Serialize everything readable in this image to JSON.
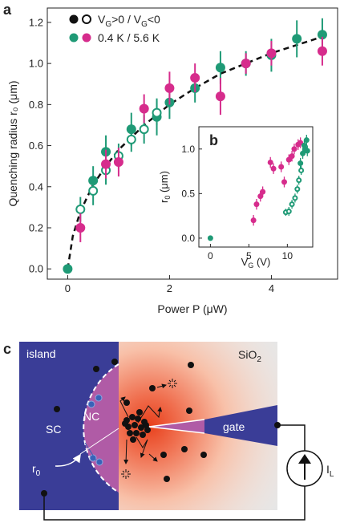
{
  "panel_labels": {
    "a": "a",
    "b": "b",
    "c": "c"
  },
  "colors": {
    "green": "#1f9a76",
    "magenta": "#d62c8c",
    "black": "#111111",
    "blue": "#3a3d97",
    "grey": "#e6e6e6",
    "nc": "#b05ba6"
  },
  "chart_data": [
    {
      "id": "a",
      "type": "scatter",
      "xlabel": "Power P (μW)",
      "ylabel": "Quenching radius r₀ (μm)",
      "xlim": [
        -0.4,
        5.3
      ],
      "ylim": [
        -0.05,
        1.27
      ],
      "xticks": [
        0,
        2,
        4
      ],
      "yticks": [
        0.0,
        0.2,
        0.4,
        0.6,
        0.8,
        1.0,
        1.2
      ],
      "xtick_labels": [
        "0",
        "2",
        "4"
      ],
      "ytick_labels": [
        "0.0",
        "0.2",
        "0.4",
        "0.6",
        "0.8",
        "1.0",
        "1.2"
      ],
      "legend": [
        {
          "markers": "filled-black / open-black",
          "label_main": "V",
          "sub1": "G",
          "mid": ">0 / V",
          "sub2": "G",
          "tail": "<0"
        },
        {
          "markers": "green / magenta",
          "label_main": "0.4 K / 5.6 K"
        }
      ],
      "fit_curve": {
        "style": "dashed",
        "x": [
          0,
          0.1,
          0.25,
          0.5,
          0.75,
          1.0,
          1.5,
          2.0,
          2.5,
          3.0,
          3.5,
          4.0,
          4.5,
          5.0
        ],
        "y": [
          0.0,
          0.16,
          0.28,
          0.41,
          0.5,
          0.58,
          0.7,
          0.8,
          0.88,
          0.95,
          1.0,
          1.05,
          1.09,
          1.13
        ]
      },
      "series": [
        {
          "name": "0.4 K",
          "color": "green",
          "fill": "filled",
          "x": [
            0.0,
            0.5,
            0.75,
            1.25,
            1.75,
            2.0,
            2.5,
            3.0,
            3.5,
            4.0,
            4.5,
            5.0
          ],
          "y": [
            0.0,
            0.43,
            0.57,
            0.68,
            0.74,
            0.81,
            0.88,
            0.98,
            1.0,
            1.04,
            1.12,
            1.14
          ],
          "err": [
            0.02,
            0.07,
            0.08,
            0.08,
            0.09,
            0.08,
            0.07,
            0.08,
            0.06,
            0.08,
            0.09,
            0.08
          ]
        },
        {
          "name": "0.4 K open",
          "color": "green",
          "fill": "open",
          "x": [
            0.25,
            0.5,
            0.75,
            1.0,
            1.25,
            1.5,
            1.75
          ],
          "y": [
            0.29,
            0.38,
            0.48,
            0.55,
            0.63,
            0.68,
            0.76
          ],
          "err": [
            0.06,
            0.07,
            0.07,
            0.06,
            0.06,
            0.07,
            0.06
          ]
        },
        {
          "name": "5.6 K",
          "color": "magenta",
          "fill": "filled",
          "x": [
            0.25,
            0.75,
            1.0,
            1.5,
            2.0,
            2.5,
            3.0,
            3.5,
            4.0,
            5.0
          ],
          "y": [
            0.2,
            0.51,
            0.52,
            0.78,
            0.88,
            0.93,
            0.84,
            1.0,
            1.05,
            1.06
          ],
          "err": [
            0.07,
            0.07,
            0.07,
            0.07,
            0.08,
            0.07,
            0.09,
            0.05,
            0.06,
            0.07
          ]
        }
      ]
    },
    {
      "id": "b",
      "type": "scatter",
      "xlabel_main": "V",
      "xlabel_sub": "G",
      "xlabel_tail": " (V)",
      "ylabel_main": "r",
      "ylabel_sub": "0",
      "ylabel_tail": " (μm)",
      "xlim": [
        -1.5,
        13.3
      ],
      "ylim": [
        -0.1,
        1.25
      ],
      "xticks": [
        0,
        5,
        10
      ],
      "yticks": [
        0.0,
        0.5,
        1.0
      ],
      "xtick_labels": [
        "0",
        "5",
        "10"
      ],
      "ytick_labels": [
        "0.0",
        "0.5",
        "1.0"
      ],
      "series": [
        {
          "name": "5.6 K",
          "color": "magenta",
          "fill": "filled",
          "x": [
            5.6,
            6.0,
            6.5,
            6.8,
            7.8,
            8.2,
            9.2,
            9.6,
            10.2,
            10.6,
            10.9,
            11.4,
            11.7
          ],
          "y": [
            0.2,
            0.38,
            0.47,
            0.52,
            0.85,
            0.78,
            0.8,
            0.63,
            0.88,
            0.92,
            1.0,
            1.05,
            1.07
          ],
          "err": [
            0.06,
            0.06,
            0.06,
            0.06,
            0.06,
            0.06,
            0.06,
            0.06,
            0.06,
            0.06,
            0.06,
            0.06,
            0.06
          ]
        },
        {
          "name": "0.4 K",
          "color": "green",
          "fill": "filled",
          "x": [
            0.0,
            11.7,
            12.0,
            12.2,
            12.3,
            12.5,
            12.6
          ],
          "y": [
            0.0,
            0.84,
            0.95,
            1.04,
            1.0,
            1.1,
            0.98
          ],
          "err": [
            0.02,
            0.06,
            0.06,
            0.06,
            0.06,
            0.06,
            0.06
          ]
        },
        {
          "name": "0.4 K open",
          "color": "green",
          "fill": "open",
          "x": [
            9.8,
            10.2,
            10.6,
            11.0,
            11.3,
            11.5,
            11.8
          ],
          "y": [
            0.29,
            0.3,
            0.38,
            0.45,
            0.55,
            0.65,
            0.76
          ],
          "err": [
            0.04,
            0.05,
            0.05,
            0.05,
            0.05,
            0.05,
            0.05
          ]
        }
      ]
    }
  ],
  "schematic": {
    "island_label": "island",
    "sio2_main": "SiO",
    "sio2_sub": "2",
    "sc_label": "SC",
    "nc_label": "NC",
    "r0_main": "r",
    "r0_sub": "0",
    "gate_label": "gate",
    "current_main": "I",
    "current_sub": "L"
  }
}
